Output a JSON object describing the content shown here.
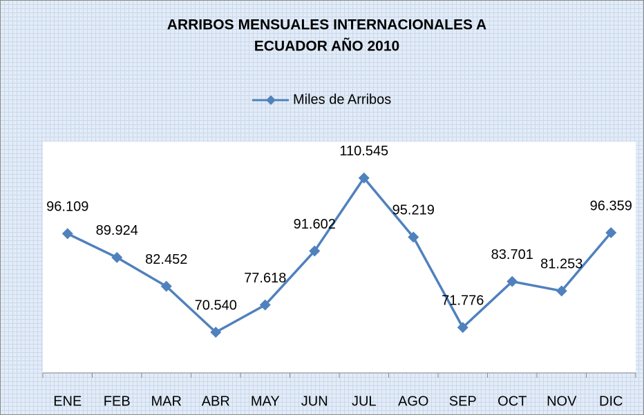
{
  "chart_data": {
    "type": "line",
    "title": [
      "ARRIBOS MENSUALES  INTERNACIONALES A",
      "ECUADOR AÑO 2010"
    ],
    "categories": [
      "ENE",
      "FEB",
      "MAR",
      "ABR",
      "MAY",
      "JUN",
      "JUL",
      "AGO",
      "SEP",
      "OCT",
      "NOV",
      "DIC"
    ],
    "series": [
      {
        "name": "Miles de Arribos",
        "color": "#4f81bd",
        "values": [
          96.109,
          89.924,
          82.452,
          70.54,
          77.618,
          91.602,
          110.545,
          95.219,
          71.776,
          83.701,
          81.253,
          96.359
        ],
        "value_labels": [
          "96.109",
          "89.924",
          "82.452",
          "70.540",
          "77.618",
          "91.602",
          "110.545",
          "95.219",
          "71.776",
          "83.701",
          "81.253",
          "96.359"
        ]
      }
    ],
    "ylim": [
      60,
      120
    ],
    "legend": "top"
  }
}
